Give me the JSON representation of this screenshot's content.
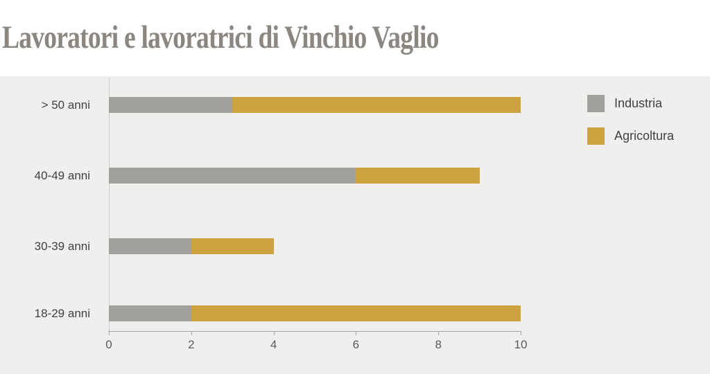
{
  "title": {
    "text": "Lavoratori e lavoratrici di Vinchio Vaglio"
  },
  "chart_data": {
    "type": "bar",
    "orientation": "horizontal",
    "stacked": true,
    "title": "Lavoratori e lavoratrici di Vinchio Vaglio",
    "categories": [
      "> 50 anni",
      "40-49 anni",
      "30-39 anni",
      "18-29 anni"
    ],
    "series": [
      {
        "name": "Industria",
        "color": "#a2a09b",
        "values": [
          3,
          6,
          2,
          2
        ]
      },
      {
        "name": "Agricoltura",
        "color": "#cca33d",
        "values": [
          7,
          3,
          2,
          8
        ]
      }
    ],
    "totals": [
      10,
      9,
      4,
      10
    ],
    "xlabel": "",
    "ylabel": "",
    "xlim": [
      0,
      10
    ],
    "xticks": [
      0,
      2,
      4,
      6,
      8,
      10
    ],
    "grid": false,
    "legend_position": "right"
  },
  "colors": {
    "title": "#8b8680",
    "page_background": "#ffffff",
    "chart_background": "#f0efed",
    "axis_line": "#a6a6a6",
    "axis_text": "#595959",
    "category_text": "#404040",
    "legend_text": "#3f3f3f"
  }
}
